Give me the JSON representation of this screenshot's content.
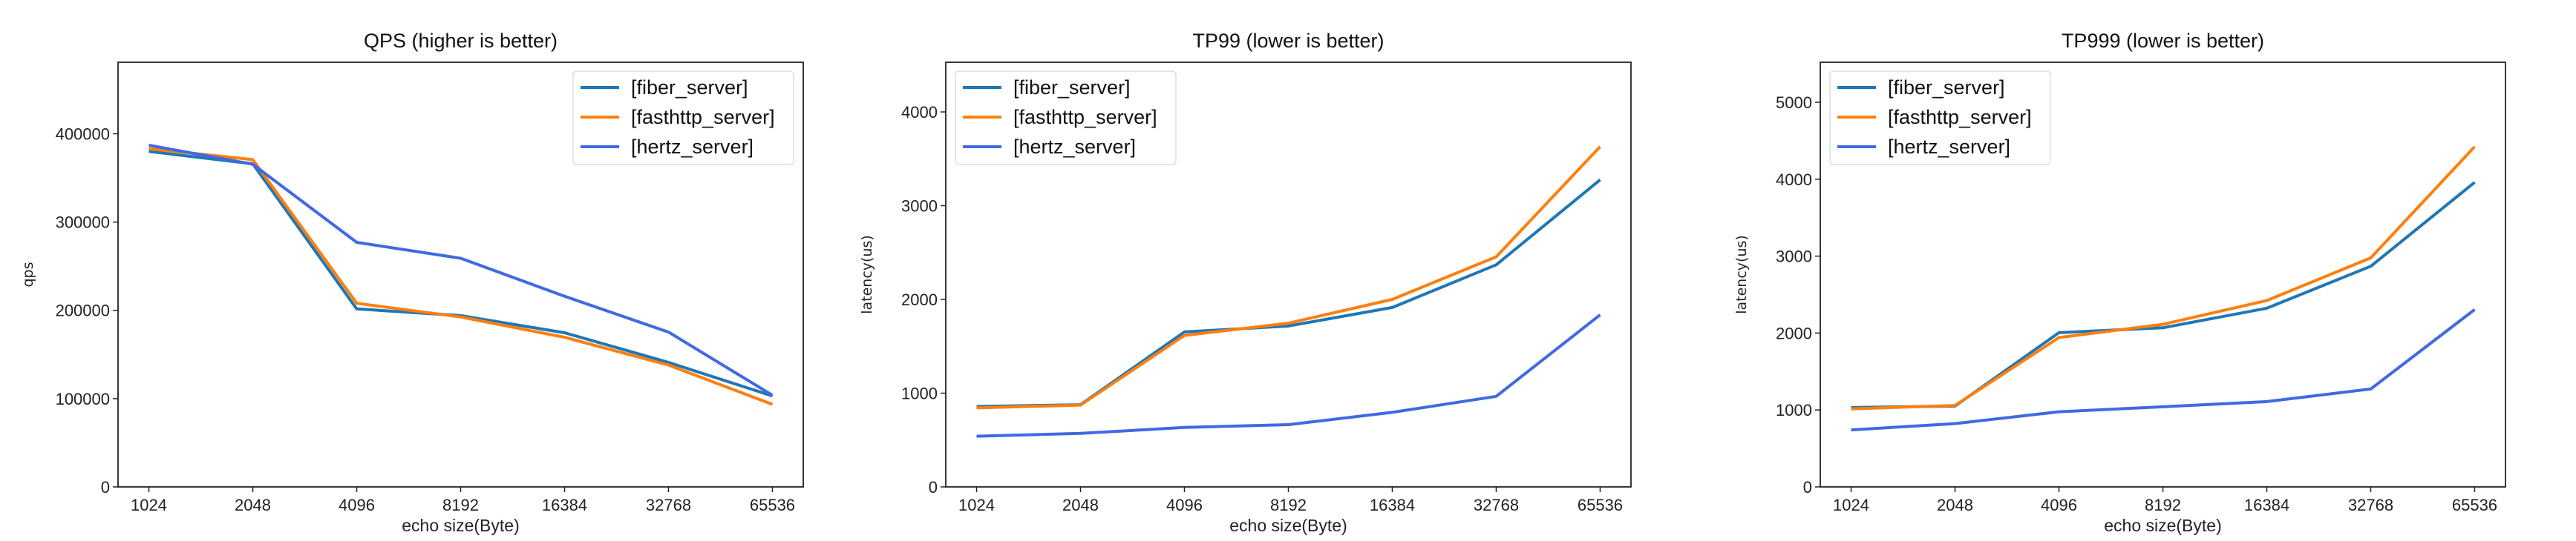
{
  "chart_data": [
    {
      "type": "line",
      "title": "QPS (higher is better)",
      "xlabel": "echo size(Byte)",
      "ylabel": "qps",
      "categories": [
        "1024",
        "2048",
        "4096",
        "8192",
        "16384",
        "32768",
        "65536"
      ],
      "ylim": [
        0,
        481000
      ],
      "yticks": [
        0,
        100000,
        200000,
        300000,
        400000
      ],
      "grid": false,
      "legend": "upper-right",
      "series": [
        {
          "name": "[fiber_server]",
          "color": "#1f77b4",
          "values": [
            380000,
            366000,
            201600,
            194000,
            174600,
            141000,
            103000
          ]
        },
        {
          "name": "[fasthttp_server]",
          "color": "#ff7f0e",
          "values": [
            383000,
            370700,
            208000,
            192500,
            169500,
            138000,
            93500
          ]
        },
        {
          "name": "[hertz_server]",
          "color": "#4169e1",
          "values": [
            387000,
            365500,
            277000,
            259000,
            216000,
            175400,
            103800
          ]
        }
      ]
    },
    {
      "type": "line",
      "title": "TP99 (lower is better)",
      "xlabel": "echo size(Byte)",
      "ylabel": "latency(us)",
      "categories": [
        "1024",
        "2048",
        "4096",
        "8192",
        "16384",
        "32768",
        "65536"
      ],
      "ylim": [
        0,
        4530
      ],
      "yticks": [
        0,
        1000,
        2000,
        3000,
        4000
      ],
      "grid": false,
      "legend": "upper-left",
      "series": [
        {
          "name": "[fiber_server]",
          "color": "#1f77b4",
          "values": [
            858,
            877,
            1653,
            1716,
            1914,
            2369,
            3276
          ]
        },
        {
          "name": "[fasthttp_server]",
          "color": "#ff7f0e",
          "values": [
            843,
            873,
            1616,
            1746,
            2000,
            2455,
            3630
          ]
        },
        {
          "name": "[hertz_server]",
          "color": "#4169e1",
          "values": [
            541,
            571,
            634,
            664,
            795,
            966,
            1836
          ]
        }
      ]
    },
    {
      "type": "line",
      "title": "TP999 (lower is better)",
      "xlabel": "echo size(Byte)",
      "ylabel": "latency(us)",
      "categories": [
        "1024",
        "2048",
        "4096",
        "8192",
        "16384",
        "32768",
        "65536"
      ],
      "ylim": [
        0,
        5520
      ],
      "yticks": [
        0,
        1000,
        2000,
        3000,
        4000,
        5000
      ],
      "grid": false,
      "legend": "upper-left",
      "series": [
        {
          "name": "[fiber_server]",
          "color": "#1f77b4",
          "values": [
            1032,
            1050,
            2005,
            2068,
            2323,
            2868,
            3959
          ]
        },
        {
          "name": "[fasthttp_server]",
          "color": "#ff7f0e",
          "values": [
            1014,
            1059,
            1941,
            2114,
            2423,
            2977,
            4423
          ]
        },
        {
          "name": "[hertz_server]",
          "color": "#4169e1",
          "values": [
            741,
            823,
            977,
            1041,
            1109,
            1273,
            2305
          ]
        }
      ]
    }
  ]
}
